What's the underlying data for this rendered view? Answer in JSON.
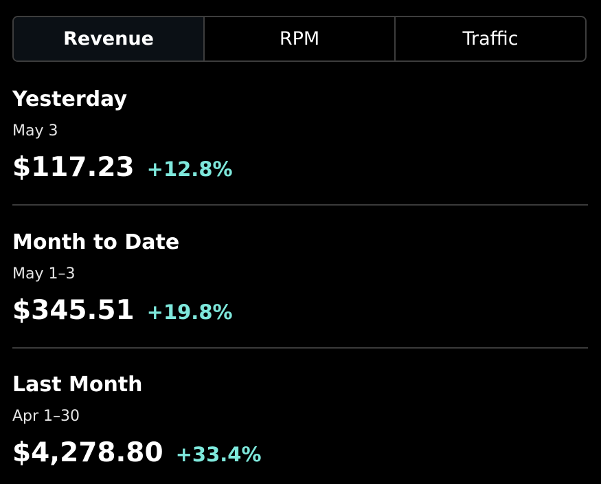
{
  "tabs": [
    {
      "label": "Revenue",
      "active": true
    },
    {
      "label": "RPM",
      "active": false
    },
    {
      "label": "Traffic",
      "active": false
    }
  ],
  "sections": [
    {
      "title": "Yesterday",
      "date": "May 3",
      "amount": "$117.23",
      "change": "+12.8%"
    },
    {
      "title": "Month to Date",
      "date": "May 1–3",
      "amount": "$345.51",
      "change": "+19.8%"
    },
    {
      "title": "Last Month",
      "date": "Apr 1–30",
      "amount": "$4,278.80",
      "change": "+33.4%"
    }
  ],
  "colors": {
    "background": "#000000",
    "active_tab": "#0b1015",
    "border": "#3d3d3d",
    "positive_change": "#7ee8dc"
  }
}
